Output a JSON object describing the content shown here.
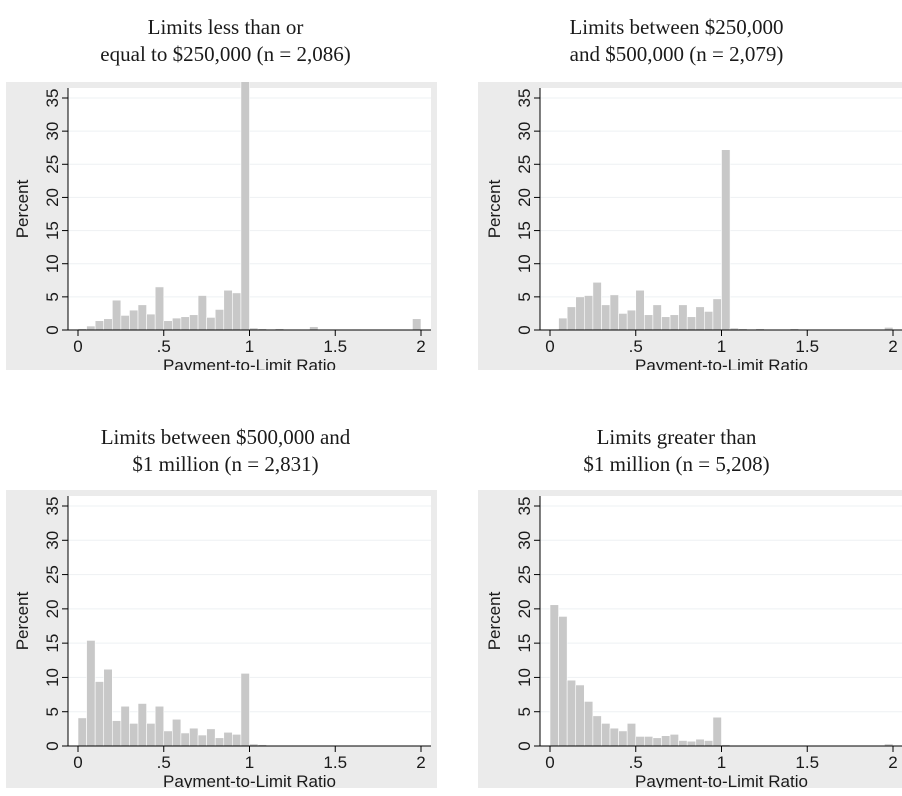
{
  "chart_data": [
    {
      "type": "bar",
      "title_lines": [
        "Limits less than or",
        "equal to $250,000 (n = 2,086)"
      ],
      "xlabel": "Payment-to-Limit Ratio",
      "ylabel": "Percent",
      "xlim": [
        0,
        2
      ],
      "ylim": [
        0,
        35
      ],
      "xticks": [
        "0",
        ".5",
        "1",
        "1.5",
        "2"
      ],
      "yticks": [
        "0",
        "5",
        "10",
        "15",
        "20",
        "25",
        "30",
        "35"
      ],
      "bin_width": 0.05,
      "values": [
        0.2,
        0.6,
        1.4,
        1.7,
        4.5,
        2.2,
        3.0,
        3.8,
        2.4,
        6.5,
        1.4,
        1.8,
        2.0,
        2.3,
        5.2,
        1.9,
        3.1,
        6.0,
        5.6,
        38.0,
        0.3,
        0.2,
        0.1,
        0.2,
        0.1,
        0.1,
        0,
        0.5,
        0.1,
        0.1,
        0,
        0,
        0.1,
        0,
        0,
        0,
        0,
        0,
        0,
        1.7
      ]
    },
    {
      "type": "bar",
      "title_lines": [
        "Limits between $250,000",
        "and $500,000 (n = 2,079)"
      ],
      "xlabel": "Payment-to-Limit Ratio",
      "ylabel": "Percent",
      "xlim": [
        0,
        2
      ],
      "ylim": [
        0,
        35
      ],
      "xticks": [
        "0",
        ".5",
        "1",
        "1.5",
        "2"
      ],
      "yticks": [
        "0",
        "5",
        "10",
        "15",
        "20",
        "25",
        "30",
        "35"
      ],
      "bin_width": 0.05,
      "values": [
        0,
        1.8,
        3.5,
        5.0,
        5.2,
        7.2,
        3.8,
        5.3,
        2.5,
        3.0,
        6.0,
        2.3,
        3.8,
        2.0,
        2.3,
        3.8,
        2.0,
        3.5,
        2.8,
        4.7,
        27.2,
        0.3,
        0.2,
        0.1,
        0.2,
        0.1,
        0.1,
        0.1,
        0.2,
        0,
        0,
        0,
        0,
        0,
        0,
        0,
        0,
        0,
        0,
        0.4
      ]
    },
    {
      "type": "bar",
      "title_lines": [
        "Limits between $500,000 and",
        "$1 million (n = 2,831)"
      ],
      "xlabel": "Payment-to-Limit Ratio",
      "ylabel": "Percent",
      "xlim": [
        0,
        2
      ],
      "ylim": [
        0,
        35
      ],
      "xticks": [
        "0",
        ".5",
        "1",
        "1.5",
        "2"
      ],
      "yticks": [
        "0",
        "5",
        "10",
        "15",
        "20",
        "25",
        "30",
        "35"
      ],
      "bin_width": 0.05,
      "values": [
        4.1,
        15.4,
        9.4,
        11.2,
        3.7,
        5.8,
        3.3,
        6.2,
        3.3,
        5.8,
        2.2,
        3.9,
        1.9,
        2.6,
        1.6,
        2.5,
        1.2,
        2.0,
        1.7,
        10.6,
        0.3,
        0.2,
        0.1,
        0.1,
        0.1,
        0.1,
        0.1,
        0.1,
        0,
        0,
        0,
        0,
        0,
        0,
        0,
        0,
        0,
        0,
        0,
        0.1
      ]
    },
    {
      "type": "bar",
      "title_lines": [
        "Limits greater than",
        "$1 million (n = 5,208)"
      ],
      "xlabel": "Payment-to-Limit Ratio",
      "ylabel": "Percent",
      "xlim": [
        0,
        2
      ],
      "ylim": [
        0,
        35
      ],
      "xticks": [
        "0",
        ".5",
        "1",
        "1.5",
        "2"
      ],
      "yticks": [
        "0",
        "5",
        "10",
        "15",
        "20",
        "25",
        "30",
        "35"
      ],
      "bin_width": 0.05,
      "values": [
        20.6,
        18.9,
        9.6,
        8.9,
        6.5,
        4.4,
        3.3,
        2.6,
        2.2,
        3.3,
        1.4,
        1.4,
        1.2,
        1.5,
        1.7,
        0.8,
        0.7,
        1.0,
        0.8,
        4.2,
        0.2,
        0.1,
        0.1,
        0.1,
        0.1,
        0.1,
        0,
        0.1,
        0,
        0,
        0,
        0,
        0,
        0,
        0,
        0,
        0,
        0,
        0,
        0.3
      ]
    }
  ]
}
